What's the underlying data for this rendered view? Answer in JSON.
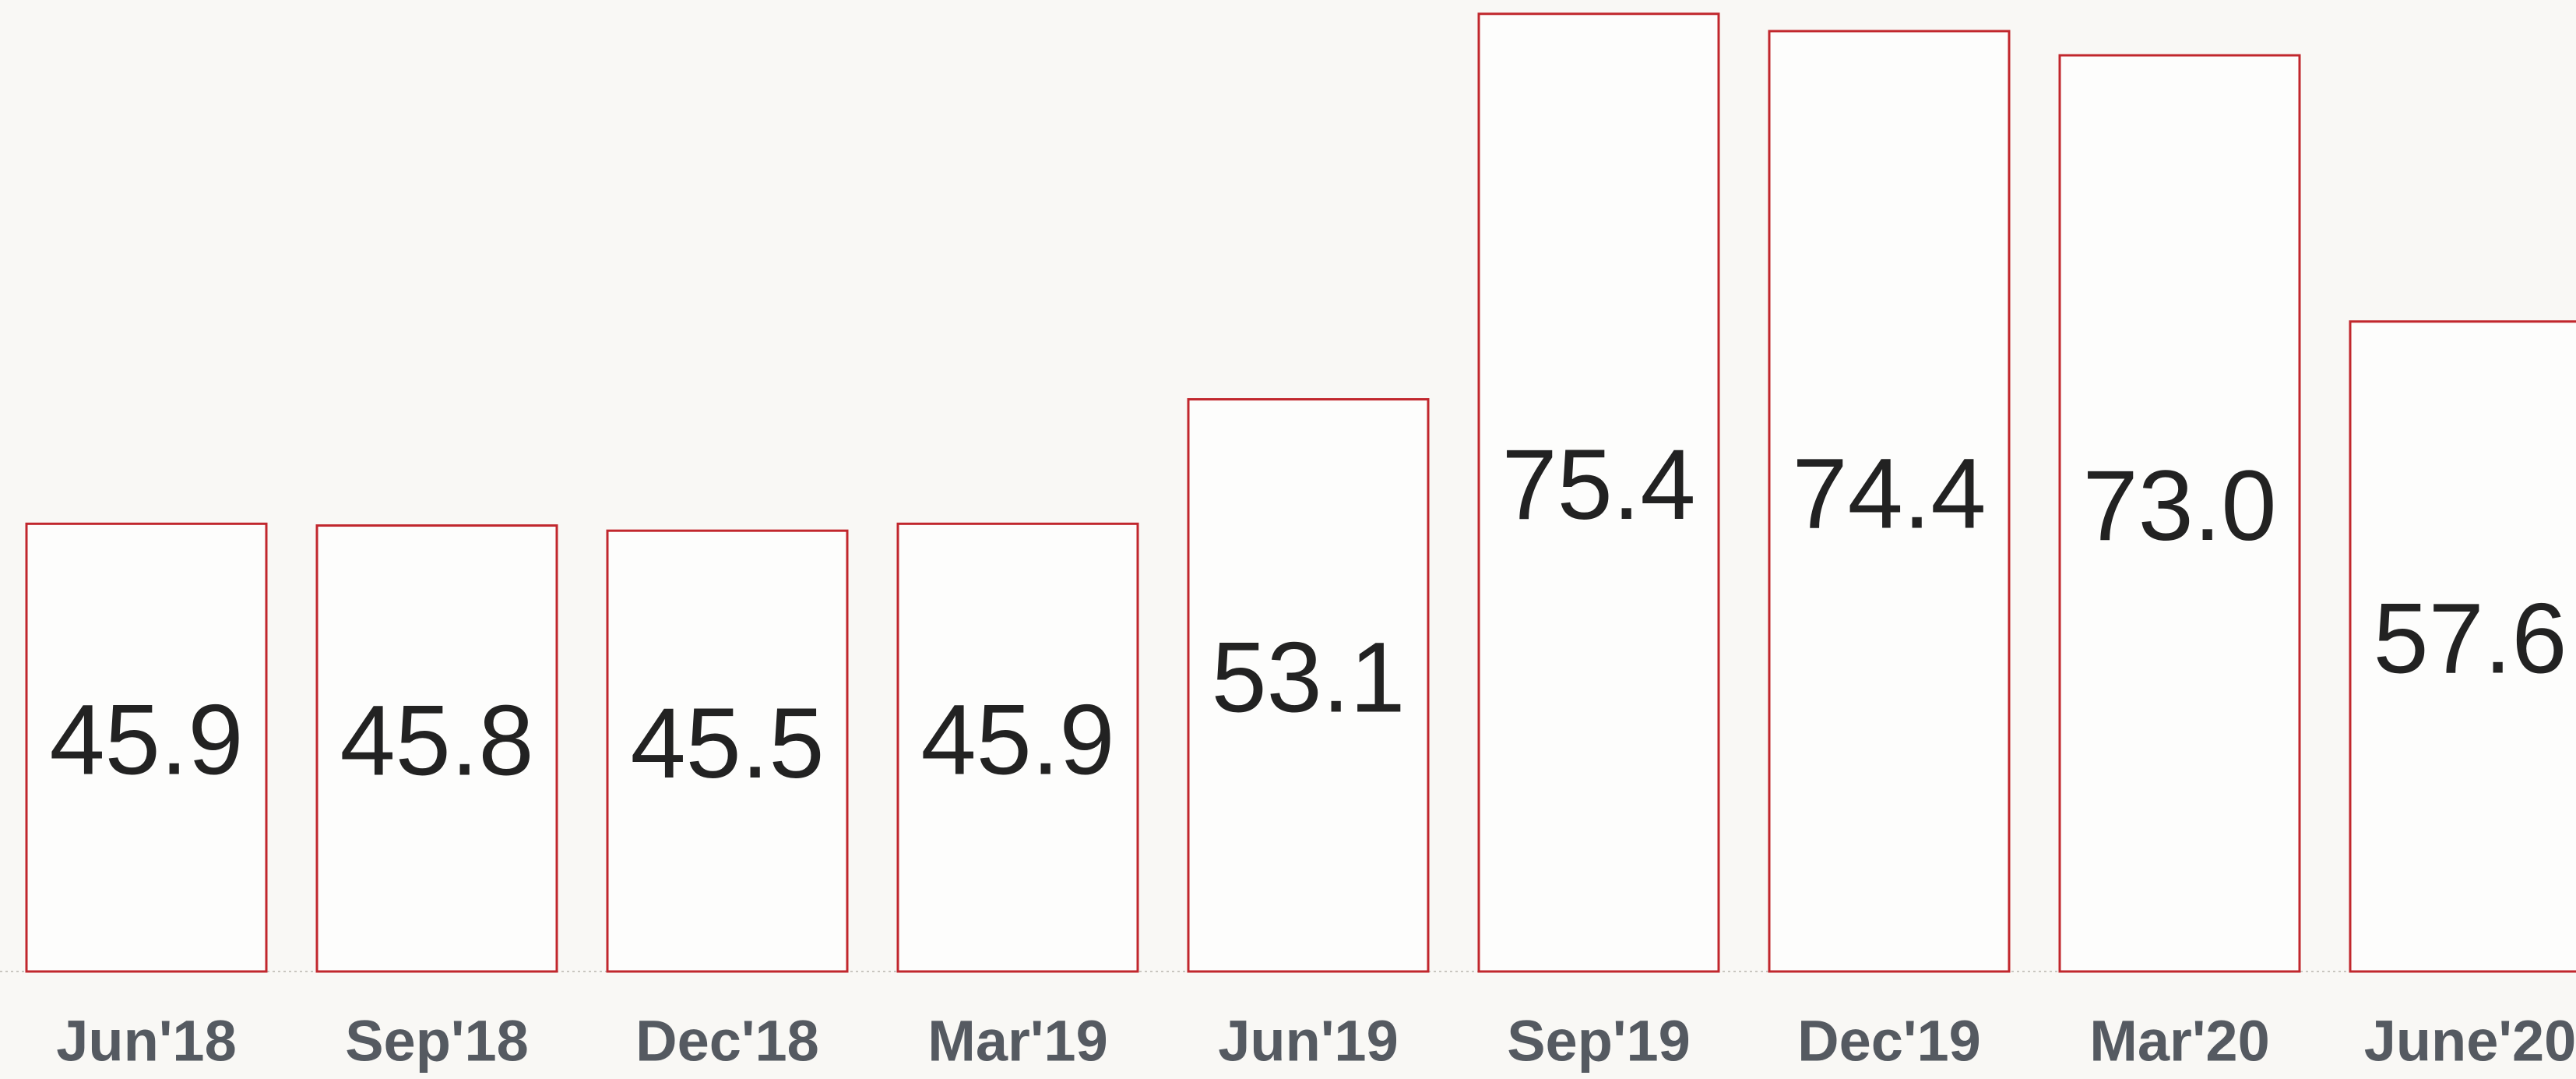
{
  "chart_data": {
    "type": "bar",
    "categories": [
      "Jun'18",
      "Sep'18",
      "Dec'18",
      "Mar'19",
      "Jun'19",
      "Sep'19",
      "Dec'19",
      "Mar'20",
      "June'20"
    ],
    "values": [
      45.9,
      45.8,
      45.5,
      45.9,
      53.1,
      75.4,
      74.4,
      73.0,
      57.6
    ],
    "value_labels": [
      "45.9",
      "45.8",
      "45.5",
      "45.9",
      "53.1",
      "75.4",
      "74.4",
      "73.0",
      "57.6"
    ],
    "color": "#c1272d",
    "ylim": [
      20,
      76.2
    ]
  }
}
